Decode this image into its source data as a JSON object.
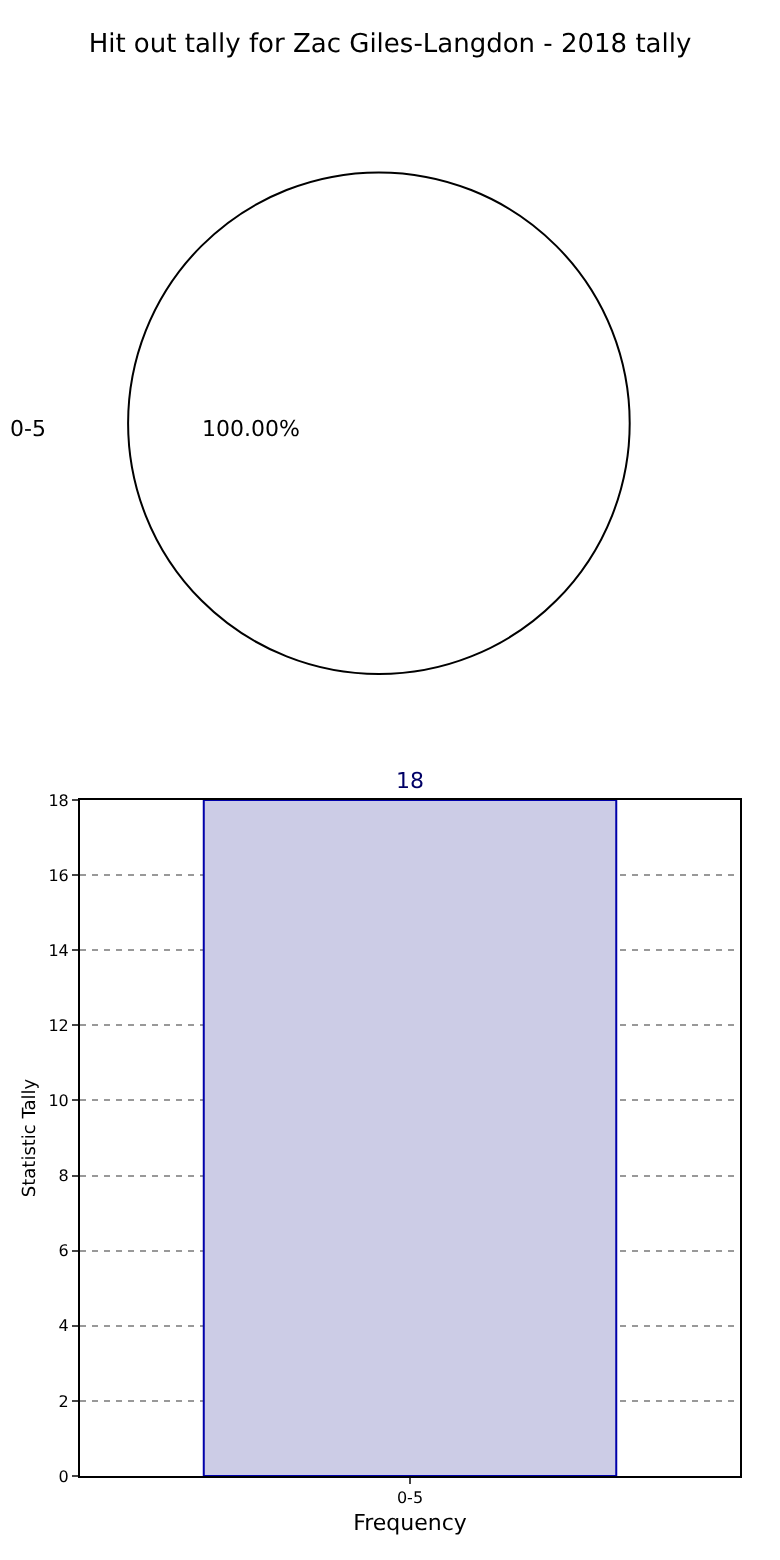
{
  "chart_data": [
    {
      "type": "pie",
      "title": "Hit out tally for Zac Giles-Langdon - 2018 tally",
      "categories": [
        "0-5"
      ],
      "values": [
        100
      ],
      "colors": [
        "#ffffff"
      ],
      "value_labels": [
        "100.00%"
      ],
      "legend": false
    },
    {
      "type": "bar",
      "categories": [
        "0-5"
      ],
      "values": [
        18
      ],
      "color": "#cccce6",
      "xlabel": "Frequency",
      "ylabel": "Statistic Tally",
      "ylim": [
        0,
        18
      ],
      "yticks": [
        0,
        2,
        4,
        6,
        8,
        10,
        12,
        14,
        16,
        18
      ],
      "grid": true,
      "line_style": "dotted",
      "data_labels": true,
      "legend": false
    }
  ]
}
